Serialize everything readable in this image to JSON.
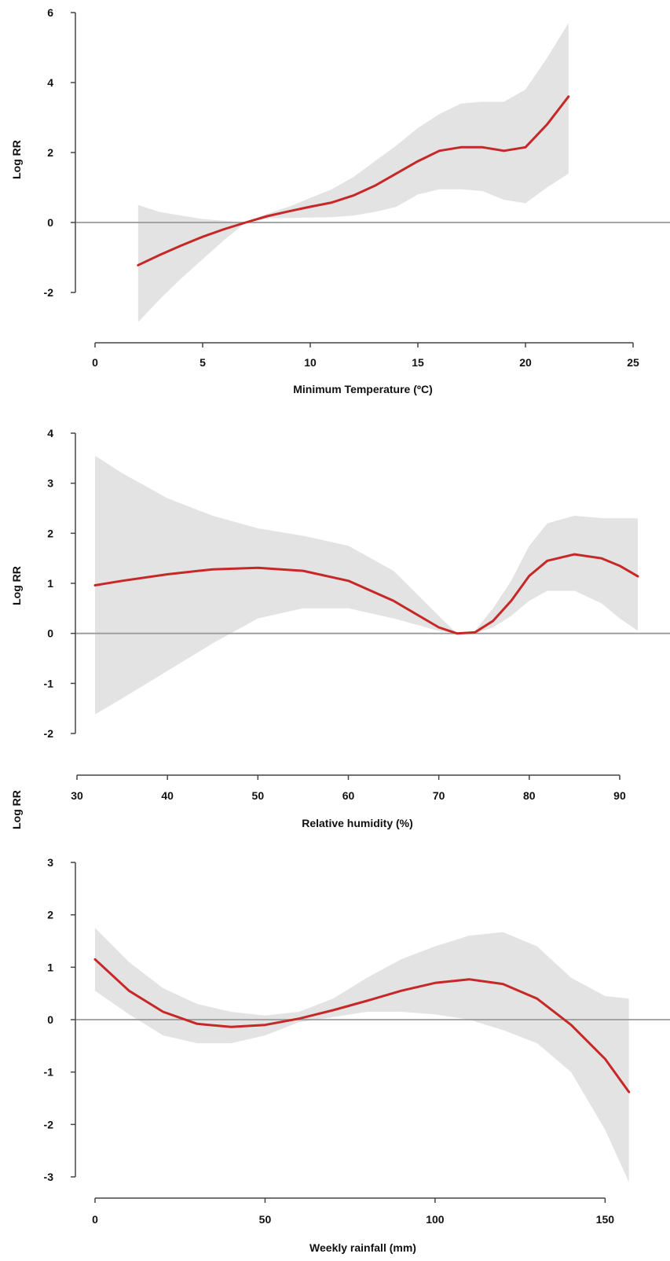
{
  "colors": {
    "curve": "#c62828",
    "band": "#e3e3e3",
    "reference_line": "#9a9a9a",
    "axis": "#444444"
  },
  "chart_data": [
    {
      "type": "line",
      "xlabel": "Minimum Temperature (ºC)",
      "ylabel": "Log RR",
      "xlim": [
        0,
        25
      ],
      "ylim": [
        -2,
        6
      ],
      "xticks": [
        0,
        5,
        10,
        15,
        20,
        25
      ],
      "yticks": [
        -2,
        0,
        2,
        4,
        6
      ],
      "reference_y": 0,
      "grid": false,
      "series": [
        {
          "x": [
            2,
            3,
            4,
            5,
            6,
            7,
            8,
            9,
            10,
            11,
            12,
            13,
            14,
            15,
            16,
            17,
            18,
            19,
            20,
            21,
            22
          ],
          "y": [
            -1.22,
            -0.93,
            -0.66,
            -0.41,
            -0.19,
            0.0,
            0.18,
            0.32,
            0.45,
            0.57,
            0.77,
            1.05,
            1.4,
            1.75,
            2.05,
            2.15,
            2.15,
            2.05,
            2.15,
            2.8,
            3.6
          ],
          "lower": [
            -2.85,
            -2.2,
            -1.6,
            -1.05,
            -0.5,
            0.0,
            0.12,
            0.13,
            0.14,
            0.15,
            0.2,
            0.3,
            0.45,
            0.8,
            0.95,
            0.95,
            0.9,
            0.65,
            0.55,
            1.0,
            1.4
          ],
          "upper": [
            0.5,
            0.3,
            0.2,
            0.1,
            0.05,
            0.0,
            0.25,
            0.45,
            0.7,
            0.95,
            1.3,
            1.75,
            2.2,
            2.7,
            3.1,
            3.4,
            3.45,
            3.45,
            3.8,
            4.7,
            5.7
          ]
        }
      ]
    },
    {
      "type": "line",
      "xlabel": "Relative humidity (%)",
      "ylabel": "Log RR",
      "xlim": [
        30,
        92
      ],
      "ylim": [
        -2,
        4
      ],
      "xticks": [
        30,
        40,
        50,
        60,
        70,
        80,
        90
      ],
      "yticks": [
        -2,
        -1,
        0,
        1,
        2,
        3,
        4
      ],
      "reference_y": 0,
      "grid": false,
      "series": [
        {
          "x": [
            32,
            35,
            40,
            45,
            50,
            55,
            60,
            65,
            70,
            72,
            74,
            76,
            78,
            80,
            82,
            85,
            88,
            90,
            92
          ],
          "y": [
            0.96,
            1.05,
            1.18,
            1.28,
            1.31,
            1.25,
            1.05,
            0.65,
            0.12,
            0.0,
            0.02,
            0.25,
            0.65,
            1.15,
            1.45,
            1.58,
            1.5,
            1.35,
            1.14
          ],
          "lower": [
            -1.62,
            -1.3,
            -0.75,
            -0.2,
            0.3,
            0.5,
            0.5,
            0.3,
            0.05,
            0.0,
            0.0,
            0.12,
            0.35,
            0.65,
            0.85,
            0.85,
            0.6,
            0.3,
            0.05
          ],
          "upper": [
            3.55,
            3.2,
            2.7,
            2.35,
            2.1,
            1.95,
            1.75,
            1.25,
            0.35,
            0.0,
            0.05,
            0.5,
            1.05,
            1.75,
            2.2,
            2.35,
            2.3,
            2.3,
            2.3
          ]
        }
      ]
    },
    {
      "type": "line",
      "xlabel": "Weekly rainfall (mm)",
      "ylabel": "Log RR",
      "xlim": [
        0,
        158
      ],
      "ylim": [
        -3,
        3
      ],
      "xticks": [
        0,
        50,
        100,
        150
      ],
      "yticks": [
        -3,
        -2,
        -1,
        0,
        1,
        2,
        3
      ],
      "reference_y": 0,
      "grid": false,
      "series": [
        {
          "x": [
            0,
            10,
            20,
            30,
            40,
            50,
            60,
            70,
            80,
            90,
            100,
            110,
            120,
            130,
            140,
            150,
            157
          ],
          "y": [
            1.15,
            0.55,
            0.15,
            -0.08,
            -0.14,
            -0.1,
            0.02,
            0.18,
            0.36,
            0.55,
            0.7,
            0.77,
            0.68,
            0.4,
            -0.1,
            -0.75,
            -1.38
          ],
          "lower": [
            0.55,
            0.1,
            -0.3,
            -0.45,
            -0.45,
            -0.3,
            -0.05,
            0.05,
            0.15,
            0.15,
            0.1,
            0.0,
            -0.2,
            -0.45,
            -1.0,
            -2.1,
            -3.1
          ],
          "upper": [
            1.75,
            1.1,
            0.6,
            0.3,
            0.15,
            0.08,
            0.15,
            0.4,
            0.8,
            1.15,
            1.4,
            1.6,
            1.67,
            1.4,
            0.8,
            0.45,
            0.4
          ]
        }
      ]
    }
  ]
}
